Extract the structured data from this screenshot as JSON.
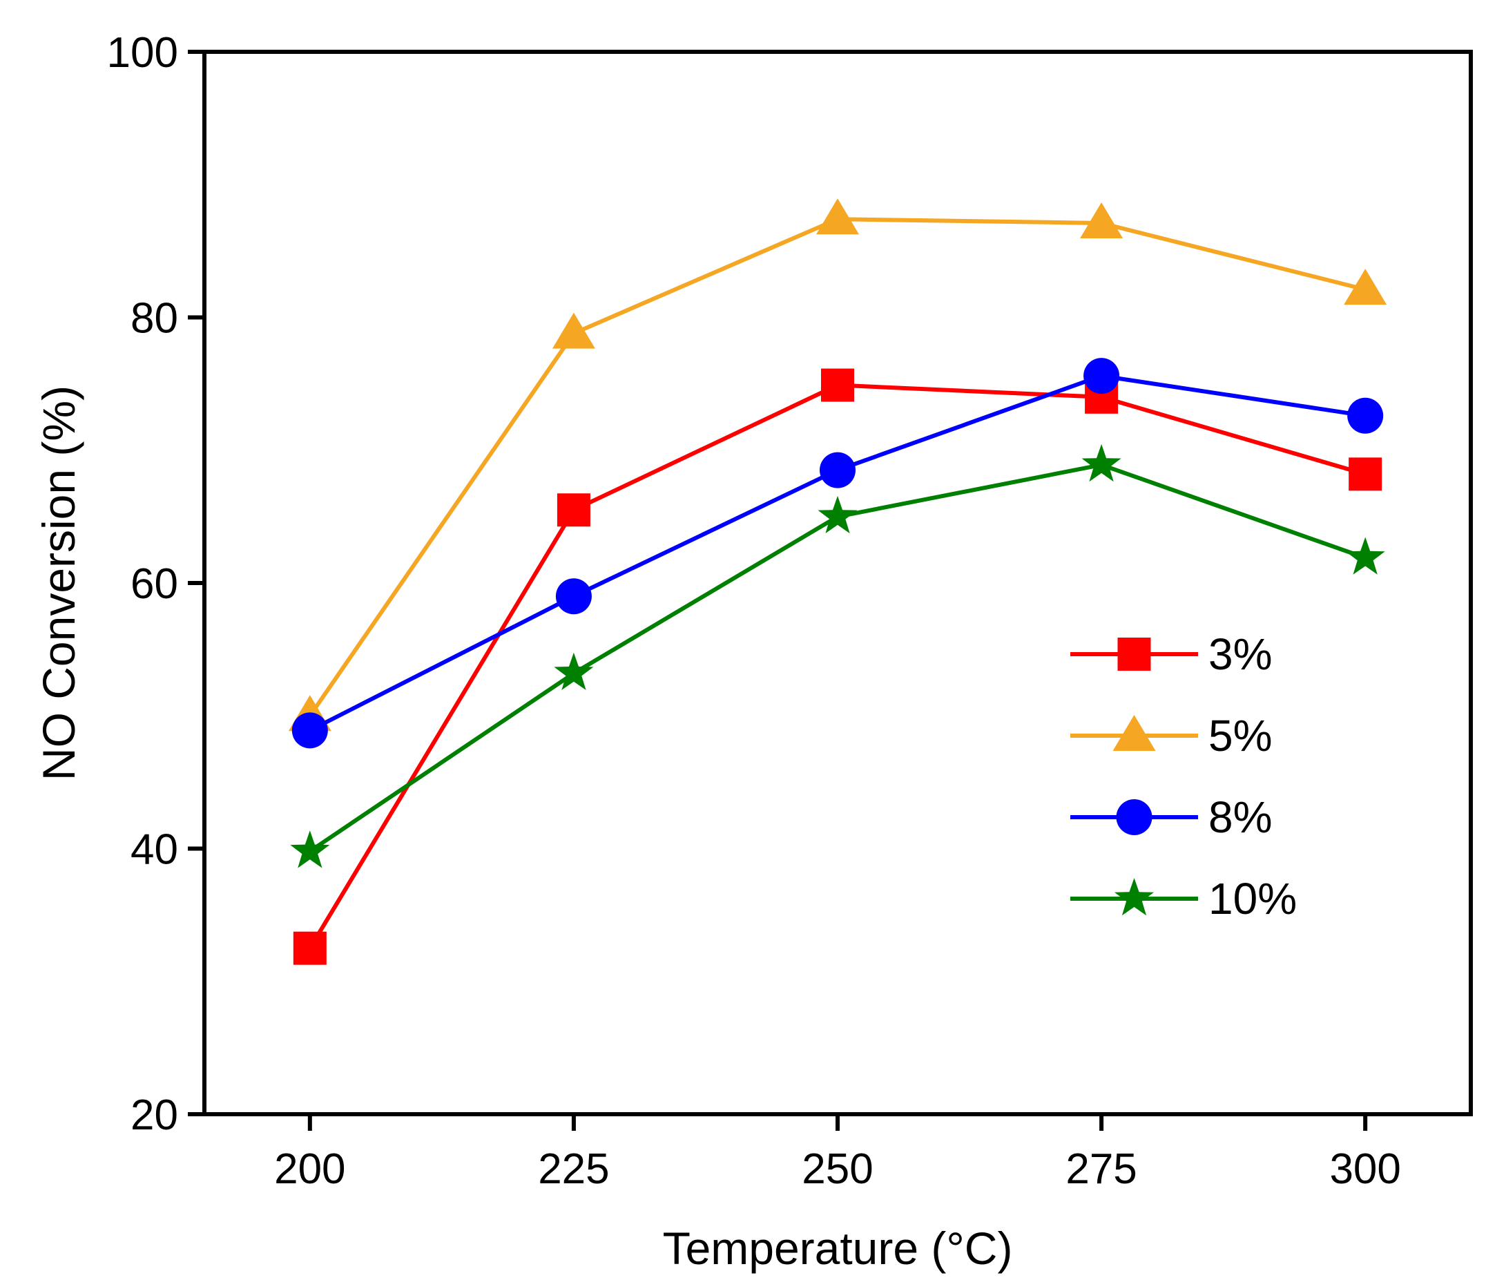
{
  "chart_data": {
    "type": "line",
    "title": "",
    "xlabel": "Temperature (°C)",
    "ylabel": "NO Conversion (%)",
    "x": [
      200,
      225,
      250,
      275,
      300
    ],
    "xlim": [
      190,
      310
    ],
    "ylim": [
      20,
      100
    ],
    "xticks": [
      "200",
      "225",
      "250",
      "275",
      "300"
    ],
    "yticks": [
      "20",
      "40",
      "60",
      "80",
      "100"
    ],
    "legend_position": "center-right",
    "grid": false,
    "series": [
      {
        "name": "3%",
        "color": "#ff0000",
        "marker": "square",
        "values": [
          32.5,
          65.5,
          74.9,
          74.0,
          68.2
        ]
      },
      {
        "name": "5%",
        "color": "#f5a623",
        "marker": "triangle",
        "values": [
          50.0,
          78.8,
          87.4,
          87.1,
          82.1
        ]
      },
      {
        "name": "8%",
        "color": "#0000ff",
        "marker": "circle",
        "values": [
          48.9,
          59.0,
          68.5,
          75.6,
          72.6
        ]
      },
      {
        "name": "10%",
        "color": "#008000",
        "marker": "star",
        "values": [
          39.8,
          53.2,
          65.0,
          68.9,
          61.9
        ]
      }
    ]
  }
}
